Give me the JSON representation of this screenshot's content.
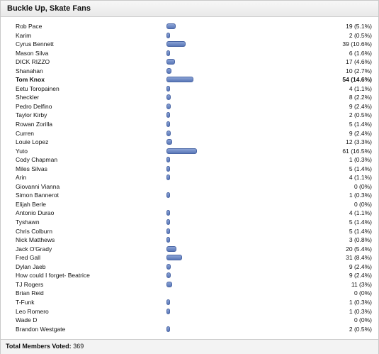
{
  "title": "Buckle Up, Skate Fans",
  "footer": {
    "label": "Total Members Voted:",
    "value": "369"
  },
  "bar_color": "#6d8cc8",
  "rows": [
    {
      "name": "Rob Pace",
      "votes": 19,
      "pct": "5.1%",
      "count": "19 (5.1%)"
    },
    {
      "name": "Karim",
      "votes": 2,
      "pct": "0.5%",
      "count": "2 (0.5%)"
    },
    {
      "name": "Cyrus Bennett",
      "votes": 39,
      "pct": "10.6%",
      "count": "39 (10.6%)"
    },
    {
      "name": "Mason Silva",
      "votes": 6,
      "pct": "1.6%",
      "count": "6 (1.6%)"
    },
    {
      "name": "DICK RIZZO",
      "votes": 17,
      "pct": "4.6%",
      "count": "17 (4.6%)"
    },
    {
      "name": "Shanahan",
      "votes": 10,
      "pct": "2.7%",
      "count": "10 (2.7%)"
    },
    {
      "name": "Tom Knox",
      "votes": 54,
      "pct": "14.6%",
      "count": "54 (14.6%)",
      "bold": true
    },
    {
      "name": "Eetu Toropainen",
      "votes": 4,
      "pct": "1.1%",
      "count": "4 (1.1%)"
    },
    {
      "name": "Sheckler",
      "votes": 8,
      "pct": "2.2%",
      "count": "8 (2.2%)"
    },
    {
      "name": "Pedro Delfino",
      "votes": 9,
      "pct": "2.4%",
      "count": "9 (2.4%)"
    },
    {
      "name": "Taylor Kirby",
      "votes": 2,
      "pct": "0.5%",
      "count": "2 (0.5%)"
    },
    {
      "name": "Rowan Zorilla",
      "votes": 5,
      "pct": "1.4%",
      "count": "5 (1.4%)"
    },
    {
      "name": "Curren",
      "votes": 9,
      "pct": "2.4%",
      "count": "9 (2.4%)"
    },
    {
      "name": "Louie Lopez",
      "votes": 12,
      "pct": "3.3%",
      "count": "12 (3.3%)"
    },
    {
      "name": "Yuto",
      "votes": 61,
      "pct": "16.5%",
      "count": "61 (16.5%)"
    },
    {
      "name": "Cody Chapman",
      "votes": 1,
      "pct": "0.3%",
      "count": "1 (0.3%)"
    },
    {
      "name": "Miles Silvas",
      "votes": 5,
      "pct": "1.4%",
      "count": "5 (1.4%)"
    },
    {
      "name": "Arin",
      "votes": 4,
      "pct": "1.1%",
      "count": "4 (1.1%)"
    },
    {
      "name": "Giovanni Vianna",
      "votes": 0,
      "pct": "0%",
      "count": "0 (0%)"
    },
    {
      "name": "Simon Bannerot",
      "votes": 1,
      "pct": "0.3%",
      "count": "1 (0.3%)"
    },
    {
      "name": "Elijah Berle",
      "votes": 0,
      "pct": "0%",
      "count": "0 (0%)"
    },
    {
      "name": "Antonio Durao",
      "votes": 4,
      "pct": "1.1%",
      "count": "4 (1.1%)"
    },
    {
      "name": "Tyshawn",
      "votes": 5,
      "pct": "1.4%",
      "count": "5 (1.4%)"
    },
    {
      "name": "Chris Colburn",
      "votes": 5,
      "pct": "1.4%",
      "count": "5 (1.4%)"
    },
    {
      "name": "Nick Matthews",
      "votes": 3,
      "pct": "0.8%",
      "count": "3 (0.8%)"
    },
    {
      "name": "Jack O'Grady",
      "votes": 20,
      "pct": "5.4%",
      "count": "20 (5.4%)"
    },
    {
      "name": "Fred Gall",
      "votes": 31,
      "pct": "8.4%",
      "count": "31 (8.4%)"
    },
    {
      "name": "Dylan Jaeb",
      "votes": 9,
      "pct": "2.4%",
      "count": "9 (2.4%)"
    },
    {
      "name": "How could I forget- Beatrice",
      "votes": 9,
      "pct": "2.4%",
      "count": "9 (2.4%)"
    },
    {
      "name": "TJ Rogers",
      "votes": 11,
      "pct": "3%",
      "count": "11 (3%)"
    },
    {
      "name": "Brian Reid",
      "votes": 0,
      "pct": "0%",
      "count": "0 (0%)"
    },
    {
      "name": "T-Funk",
      "votes": 1,
      "pct": "0.3%",
      "count": "1 (0.3%)"
    },
    {
      "name": "Leo Romero",
      "votes": 1,
      "pct": "0.3%",
      "count": "1 (0.3%)"
    },
    {
      "name": "Wade D",
      "votes": 0,
      "pct": "0%",
      "count": "0 (0%)"
    },
    {
      "name": "Brandon Westgate",
      "votes": 2,
      "pct": "0.5%",
      "count": "2 (0.5%)"
    }
  ]
}
